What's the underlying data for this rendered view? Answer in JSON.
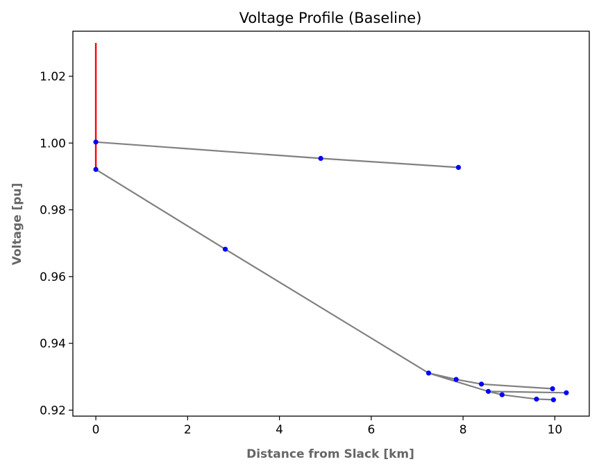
{
  "chart_data": {
    "type": "line",
    "title": "Voltage Profile (Baseline)",
    "xlabel": "Distance from Slack [km]",
    "ylabel": "Voltage [pu]",
    "xlim": [
      -0.5,
      10.75
    ],
    "ylim": [
      0.9182,
      1.0335
    ],
    "xticks": [
      0,
      2,
      4,
      6,
      8,
      10
    ],
    "yticks": [
      0.92,
      0.94,
      0.96,
      0.98,
      1.0,
      1.02
    ],
    "ytick_labels": [
      "0.92",
      "0.94",
      "0.96",
      "0.98",
      "1.00",
      "1.02"
    ],
    "grid": false,
    "legend": "none",
    "line_color": "#808080",
    "marker_color": "#0000ff",
    "slack_color": "#ff0000",
    "slack_segment": {
      "x": 0,
      "y": [
        0.992,
        1.03
      ]
    },
    "segments": [
      {
        "x": [
          0,
          4.9,
          7.9
        ],
        "y": [
          1.0003,
          0.9954,
          0.9927
        ]
      },
      {
        "x": [
          0,
          2.82,
          7.25
        ],
        "y": [
          0.9921,
          0.9682,
          0.9311
        ]
      },
      {
        "x": [
          7.25,
          7.85,
          8.4,
          9.95
        ],
        "y": [
          0.9311,
          0.9292,
          0.9278,
          0.9264
        ]
      },
      {
        "x": [
          7.25,
          8.55,
          10.25
        ],
        "y": [
          0.9311,
          0.9256,
          0.9252
        ]
      },
      {
        "x": [
          8.55,
          8.85,
          9.6,
          9.97
        ],
        "y": [
          0.9256,
          0.9246,
          0.9233,
          0.9231
        ]
      }
    ],
    "points": [
      {
        "x": 0,
        "y": 1.0003
      },
      {
        "x": 4.9,
        "y": 0.9954
      },
      {
        "x": 7.9,
        "y": 0.9927
      },
      {
        "x": 0,
        "y": 0.9921
      },
      {
        "x": 2.82,
        "y": 0.9682
      },
      {
        "x": 7.25,
        "y": 0.9311
      },
      {
        "x": 7.85,
        "y": 0.9292
      },
      {
        "x": 8.4,
        "y": 0.9278
      },
      {
        "x": 9.95,
        "y": 0.9264
      },
      {
        "x": 8.55,
        "y": 0.9256
      },
      {
        "x": 10.25,
        "y": 0.9252
      },
      {
        "x": 8.85,
        "y": 0.9246
      },
      {
        "x": 9.6,
        "y": 0.9233
      },
      {
        "x": 9.97,
        "y": 0.9231
      }
    ]
  }
}
